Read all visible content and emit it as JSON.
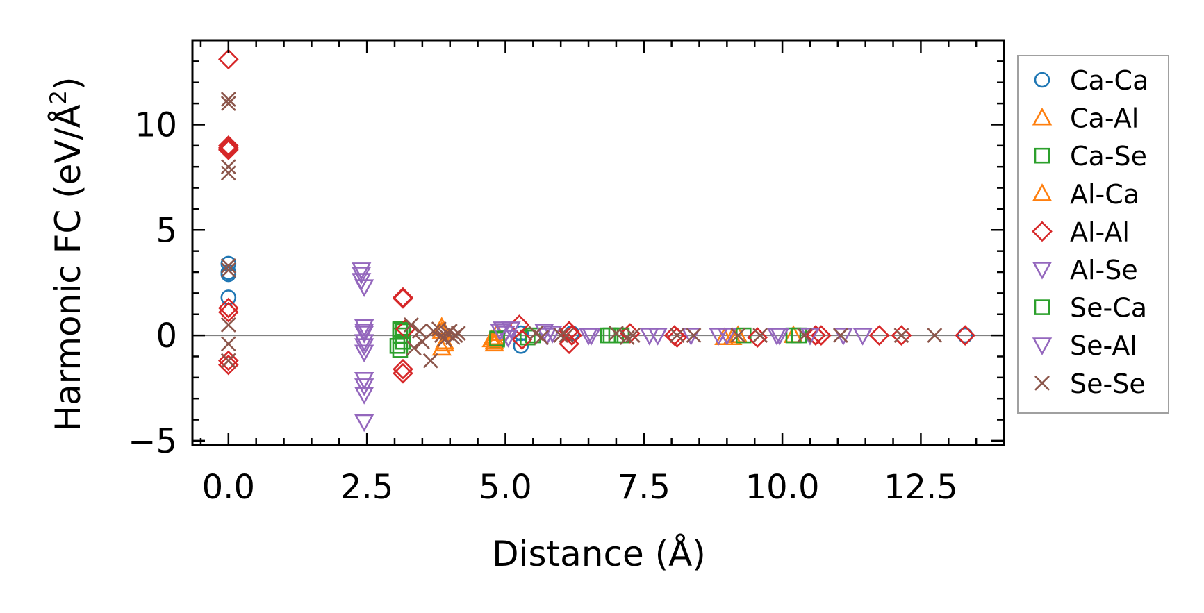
{
  "chart_data": {
    "type": "scatter",
    "xlabel": "Distance (Å)",
    "ylabel_main": "Harmonic FC (eV/Å",
    "ylabel_sup": "2",
    "ylabel_tail": ")",
    "xlim": [
      -0.65,
      14.0
    ],
    "ylim": [
      -5.2,
      14.0
    ],
    "xticks": [
      0.0,
      2.5,
      5.0,
      7.5,
      10.0,
      12.5
    ],
    "xtick_labels": [
      "0.0",
      "2.5",
      "5.0",
      "7.5",
      "10.0",
      "12.5"
    ],
    "yticks": [
      -5,
      0,
      5,
      10
    ],
    "ytick_labels": [
      "−5",
      "0",
      "5",
      "10"
    ],
    "zero_line": true,
    "legend_position": "outside-right",
    "series": [
      {
        "name": "Ca-Ca",
        "marker": "circle",
        "color": "#1f77b4",
        "x": [
          0,
          0,
          0,
          0,
          5.28,
          5.28,
          6.2,
          13.3
        ],
        "y": [
          3.4,
          3.0,
          2.9,
          1.8,
          -0.5,
          0.1,
          0.1,
          0.0
        ]
      },
      {
        "name": "Ca-Al",
        "marker": "triangle-up",
        "color": "#ff7f0e",
        "x": [
          3.85,
          3.85,
          3.9,
          4.8,
          4.8,
          4.85,
          9.1,
          9.2,
          10.2
        ],
        "y": [
          0.4,
          -0.6,
          -0.3,
          -0.3,
          -0.1,
          0.1,
          -0.1,
          0.0,
          0.0
        ]
      },
      {
        "name": "Ca-Se",
        "marker": "square",
        "color": "#2ca02c",
        "x": [
          3.1,
          3.1,
          3.1,
          3.15,
          3.15,
          4.85,
          5.4,
          5.5,
          6.9,
          7.0,
          9.3,
          10.3
        ],
        "y": [
          0.3,
          0.0,
          -0.7,
          0.2,
          -0.3,
          -0.2,
          -0.1,
          0.0,
          0.0,
          0.0,
          0.0,
          0.0
        ]
      },
      {
        "name": "Al-Ca",
        "marker": "triangle-up",
        "color": "#ff7f0e",
        "x": [
          3.85,
          3.9,
          4.75,
          4.8,
          8.95
        ],
        "y": [
          0.2,
          -0.4,
          -0.2,
          -0.4,
          -0.1
        ]
      },
      {
        "name": "Al-Al",
        "marker": "diamond",
        "color": "#d62728",
        "x": [
          0,
          0,
          0,
          0,
          0,
          0,
          0,
          0,
          3.15,
          3.15,
          3.15,
          3.15,
          3.2,
          5.25,
          5.3,
          6.15,
          6.15,
          6.2,
          7.25,
          8.05,
          8.1,
          9.55,
          10.6,
          10.7,
          11.75,
          12.15,
          13.3
        ],
        "y": [
          13.1,
          9.0,
          8.9,
          8.8,
          1.3,
          1.1,
          -1.2,
          -1.4,
          1.8,
          1.75,
          -1.6,
          -1.8,
          0.3,
          0.5,
          -0.2,
          0.2,
          -0.4,
          0.0,
          0.1,
          0.0,
          -0.1,
          -0.1,
          0.0,
          0.0,
          0.0,
          0.0,
          0.0
        ]
      },
      {
        "name": "Al-Se",
        "marker": "triangle-down",
        "color": "#9467bd",
        "x": [
          2.4,
          2.4,
          2.4,
          2.45,
          2.45,
          2.45,
          2.45,
          2.45,
          2.45,
          2.45,
          2.45,
          4.95,
          5.0,
          5.05,
          5.7,
          5.75,
          6.55,
          7.6,
          8.35,
          8.85,
          9.9,
          11.45
        ],
        "y": [
          3.1,
          2.9,
          2.6,
          2.3,
          0.4,
          0.1,
          -0.5,
          -0.8,
          -2.1,
          -2.8,
          -4.1,
          0.3,
          0.1,
          -0.1,
          0.2,
          0.0,
          0.0,
          0.0,
          0.0,
          0.0,
          0.0,
          0.0
        ]
      },
      {
        "name": "Se-Ca",
        "marker": "square",
        "color": "#2ca02c",
        "x": [
          3.05,
          3.1,
          4.85,
          6.85,
          7.1,
          10.2
        ],
        "y": [
          -0.5,
          0.25,
          -0.15,
          0.0,
          0.0,
          0.0
        ]
      },
      {
        "name": "Se-Al",
        "marker": "triangle-down",
        "color": "#9467bd",
        "x": [
          2.45,
          2.45,
          2.45,
          4.9,
          5.1,
          5.85,
          6.5,
          7.75,
          9.0,
          9.95,
          10.5,
          11.1
        ],
        "y": [
          0.2,
          -0.3,
          -2.4,
          0.2,
          0.3,
          0.1,
          0.0,
          0.0,
          0.0,
          0.0,
          0.0,
          0.0
        ]
      },
      {
        "name": "Se-Se",
        "marker": "x",
        "color": "#8c564b",
        "x": [
          0,
          0,
          0,
          0,
          0,
          0,
          0,
          0,
          0,
          3.3,
          3.35,
          3.45,
          3.5,
          3.65,
          3.7,
          3.8,
          3.85,
          3.9,
          3.95,
          4.0,
          4.05,
          4.1,
          4.15,
          5.55,
          5.65,
          6.0,
          6.1,
          7.0,
          7.2,
          7.3,
          8.1,
          8.4,
          9.2,
          9.6,
          10.4,
          11.05,
          12.15,
          12.75
        ],
        "y": [
          11.2,
          11.0,
          8.0,
          7.7,
          3.3,
          3.1,
          0.5,
          -0.4,
          -1.2,
          0.5,
          -0.6,
          0.2,
          -0.3,
          -1.2,
          0.2,
          0.3,
          0.0,
          -0.2,
          0.1,
          0.2,
          -0.1,
          0.0,
          0.1,
          0.1,
          -0.1,
          0.0,
          0.0,
          0.1,
          -0.1,
          0.0,
          0.0,
          0.0,
          0.0,
          0.0,
          0.0,
          0.0,
          0.0,
          0.0
        ]
      }
    ]
  }
}
